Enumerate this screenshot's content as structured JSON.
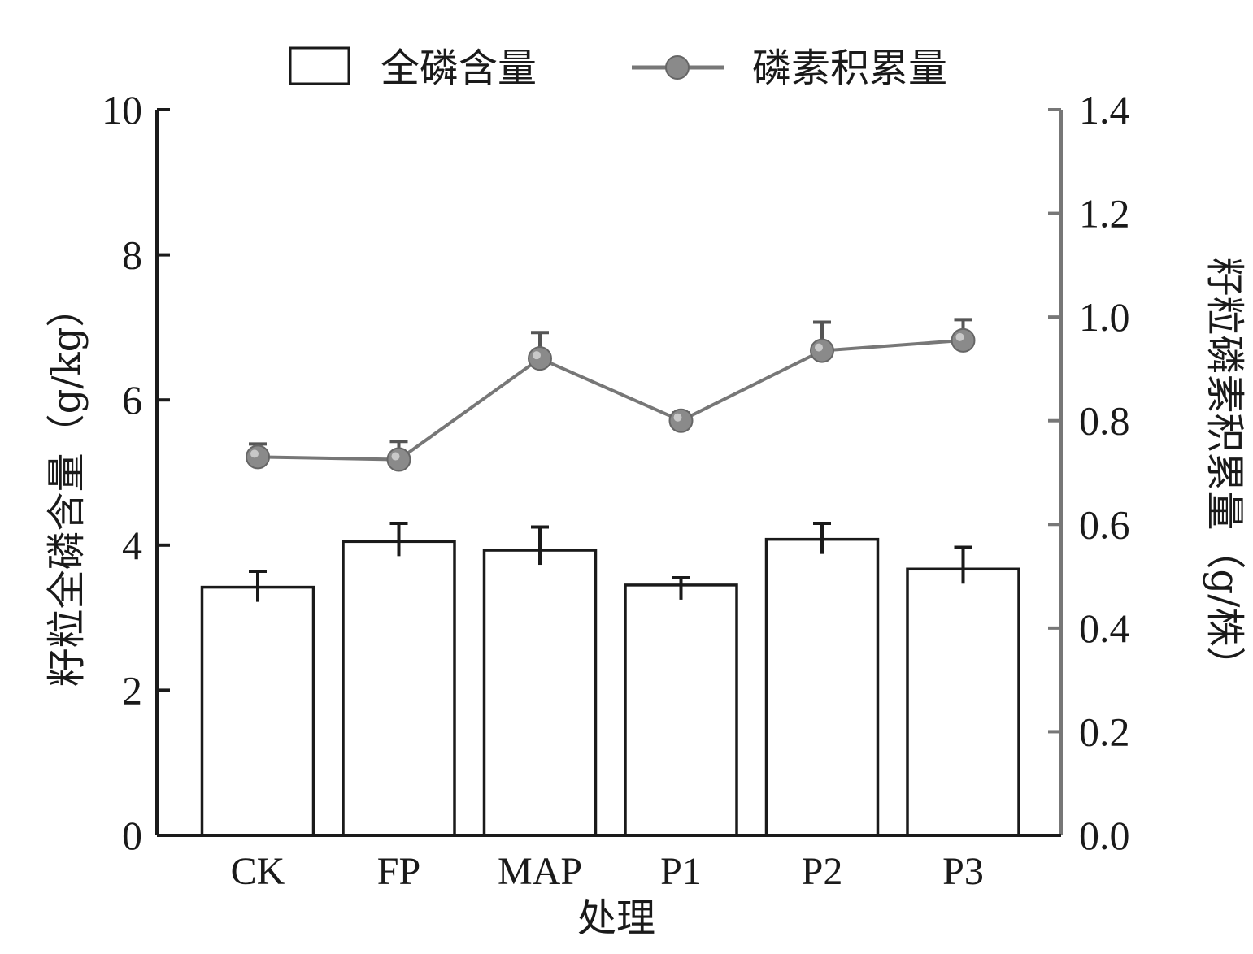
{
  "chart_data": {
    "type": "bar",
    "categories": [
      "CK",
      "FP",
      "MAP",
      "P1",
      "P2",
      "P3"
    ],
    "xlabel": "处理",
    "series": [
      {
        "name": "全磷含量",
        "type": "bar",
        "axis": "left",
        "values": [
          3.42,
          4.05,
          3.93,
          3.45,
          4.08,
          3.67
        ],
        "errors": [
          0.22,
          0.25,
          0.32,
          0.1,
          0.22,
          0.3
        ]
      },
      {
        "name": "磷素积累量",
        "type": "line",
        "axis": "right",
        "values": [
          0.73,
          0.725,
          0.92,
          0.8,
          0.935,
          0.955
        ],
        "errors": [
          0.025,
          0.035,
          0.05,
          0.015,
          0.055,
          0.04
        ]
      }
    ],
    "y_left": {
      "label": "籽粒全磷含量（g/kg）",
      "ylim": [
        0,
        10
      ],
      "ticks": [
        "0",
        "2",
        "4",
        "6",
        "8",
        "10"
      ]
    },
    "y_right": {
      "label": "籽粒磷素积累量（g/株）",
      "ylim": [
        0,
        1.4
      ],
      "ticks": [
        "0.0",
        "0.2",
        "0.4",
        "0.6",
        "0.8",
        "1.0",
        "1.2",
        "1.4"
      ]
    },
    "legend_position": "top-center",
    "grid": false,
    "colors": {
      "bar_fill": "#ffffff",
      "bar_stroke": "#1a1a1a",
      "line": "#777777",
      "marker": "#8a8a8a",
      "axis_left": "#1a1a1a",
      "axis_right": "#777777"
    }
  }
}
